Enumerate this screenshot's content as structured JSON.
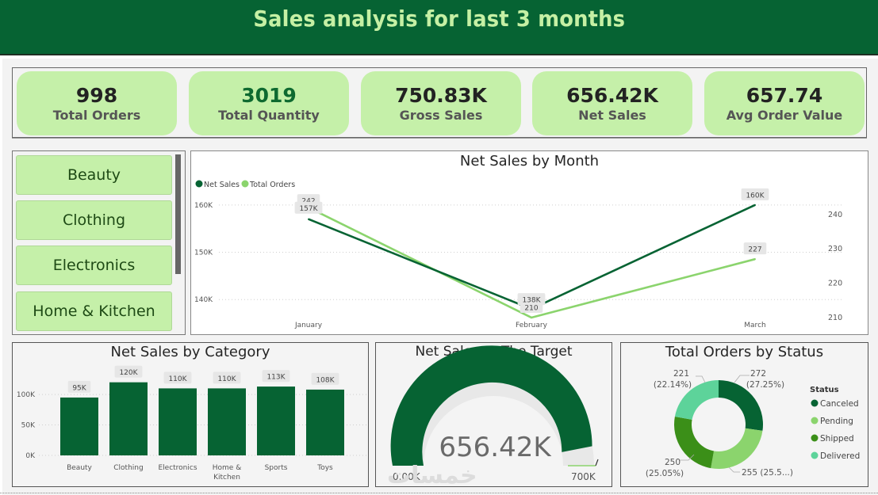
{
  "header": {
    "title": "Sales analysis for last 3 months"
  },
  "kpis": [
    {
      "value": "998",
      "label": "Total Orders"
    },
    {
      "value": "3019",
      "label": "Total Quantity"
    },
    {
      "value": "750.83K",
      "label": "Gross Sales"
    },
    {
      "value": "656.42K",
      "label": "Net Sales"
    },
    {
      "value": "657.74",
      "label": "Avg Order Value"
    }
  ],
  "slicer": {
    "items": [
      "Beauty",
      "Clothing",
      "Electronics",
      "Home & Kitchen"
    ]
  },
  "colors": {
    "dark_green": "#066333",
    "light_green": "#8bd46d",
    "kpi_bg": "#c5f0a9",
    "shipped": "#3b8f18",
    "delivered": "#5dd39a"
  },
  "chart_data": [
    {
      "type": "line",
      "title": "Net Sales by Month",
      "x": [
        "January",
        "February",
        "March"
      ],
      "series": [
        {
          "name": "Net Sales",
          "axis": "left",
          "values": [
            157000,
            138000,
            160000
          ],
          "labels": [
            "157K",
            "138K",
            "160K"
          ]
        },
        {
          "name": "Total Orders",
          "axis": "right",
          "values": [
            242,
            210,
            227
          ],
          "labels": [
            "242",
            "210",
            "227"
          ]
        }
      ],
      "y_left": {
        "ticks": [
          "140K",
          "150K",
          "160K"
        ],
        "tick_values": [
          140000,
          150000,
          160000
        ],
        "range": [
          134000,
          166000
        ]
      },
      "y_right": {
        "ticks": [
          "210",
          "220",
          "230",
          "240"
        ],
        "tick_values": [
          210,
          220,
          230,
          240
        ],
        "range": [
          207,
          251
        ]
      },
      "legend": "top-left",
      "grid": true
    },
    {
      "type": "bar",
      "title": "Net Sales by Category",
      "categories": [
        "Beauty",
        "Clothing",
        "Electronics",
        "Home & Kitchen",
        "Sports",
        "Toys"
      ],
      "values": [
        95000,
        120000,
        110000,
        110000,
        113000,
        108000
      ],
      "labels": [
        "95K",
        "120K",
        "110K",
        "110K",
        "113K",
        "108K"
      ],
      "y_ticks": [
        "0K",
        "50K",
        "100K"
      ],
      "y_tick_values": [
        0,
        50000,
        100000
      ],
      "ylim": [
        0,
        130000
      ],
      "grid": true
    },
    {
      "type": "gauge",
      "title": "Net Sales to The Target",
      "value": 656420,
      "value_label": "656.42K",
      "min": 0,
      "min_label": "0.00K",
      "max": 700000,
      "max_label": "700K"
    },
    {
      "type": "pie",
      "title": "Total Orders by Status",
      "legend_title": "Status",
      "legend": "right",
      "slices": [
        {
          "name": "Canceled",
          "value": 272,
          "label": "272",
          "pct": "(27.25%)"
        },
        {
          "name": "Pending",
          "value": 255,
          "label": "255 (25.5...)",
          "pct": ""
        },
        {
          "name": "Shipped",
          "value": 250,
          "label": "250",
          "pct": "(25.05%)"
        },
        {
          "name": "Delivered",
          "value": 221,
          "label": "221",
          "pct": "(22.14%)"
        }
      ]
    }
  ],
  "watermark": "خمسات"
}
